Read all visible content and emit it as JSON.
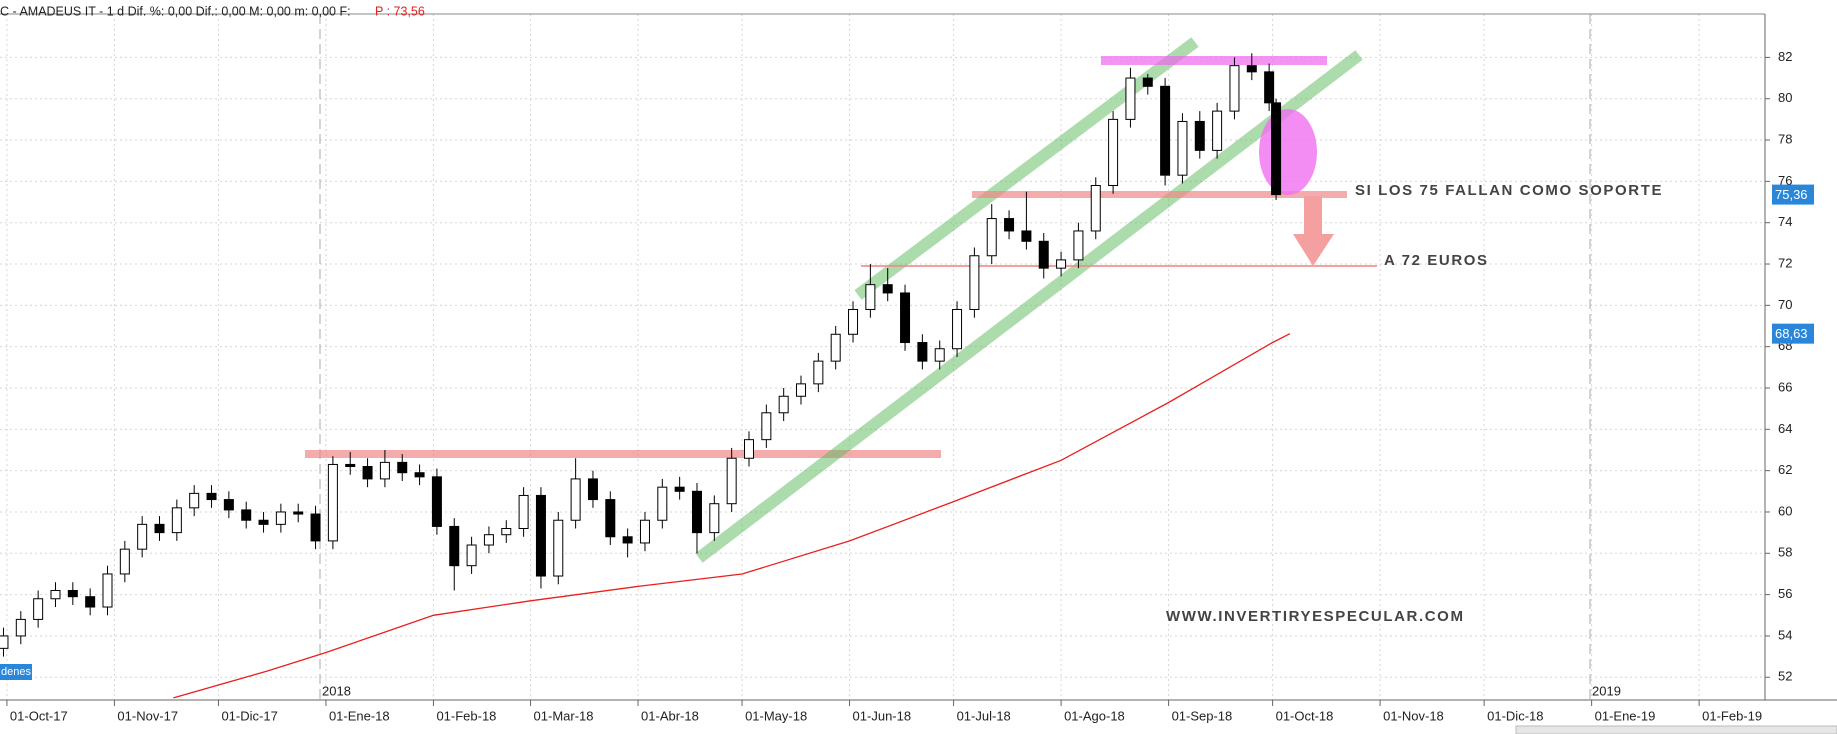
{
  "header": {
    "text": "C - AMADEUS IT  -  1 d  Dif. %: 0,00  Dif.: 0,00  M: 0,00  m: 0,00  F:",
    "price": "P : 73,56"
  },
  "chart_data": {
    "type": "candlestick",
    "xlim": [
      "2017-09-29",
      "2019-02-20"
    ],
    "ylim": [
      50.9,
      84.1
    ],
    "yticks": [
      52,
      54,
      56,
      58,
      60,
      62,
      64,
      66,
      68,
      70,
      72,
      74,
      76,
      78,
      80,
      82
    ],
    "xticks": [
      {
        "value": "2017-10-01",
        "label": "01-Oct-17"
      },
      {
        "value": "2017-11-01",
        "label": "01-Nov-17"
      },
      {
        "value": "2017-12-01",
        "label": "01-Dic-17"
      },
      {
        "value": "2018-01-01",
        "label": "01-Ene-18"
      },
      {
        "value": "2018-02-01",
        "label": "01-Feb-18"
      },
      {
        "value": "2018-03-01",
        "label": "01-Mar-18"
      },
      {
        "value": "2018-04-01",
        "label": "01-Abr-18"
      },
      {
        "value": "2018-05-01",
        "label": "01-May-18"
      },
      {
        "value": "2018-06-01",
        "label": "01-Jun-18"
      },
      {
        "value": "2018-07-01",
        "label": "01-Jul-18"
      },
      {
        "value": "2018-08-01",
        "label": "01-Ago-18"
      },
      {
        "value": "2018-09-01",
        "label": "01-Sep-18"
      },
      {
        "value": "2018-10-01",
        "label": "01-Oct-18"
      },
      {
        "value": "2018-11-01",
        "label": "01-Nov-18"
      },
      {
        "value": "2018-12-01",
        "label": "01-Dic-18"
      },
      {
        "value": "2019-01-01",
        "label": "01-Ene-19"
      },
      {
        "value": "2019-02-01",
        "label": "01-Feb-19"
      }
    ],
    "grid": true,
    "up_color": "#ffffff",
    "down_color": "#000000",
    "candles": {
      "x": [
        "2017-09-30",
        "2017-10-05",
        "2017-10-10",
        "2017-10-15",
        "2017-10-20",
        "2017-10-25",
        "2017-10-30",
        "2017-11-04",
        "2017-11-09",
        "2017-11-14",
        "2017-11-19",
        "2017-11-24",
        "2017-11-29",
        "2017-12-04",
        "2017-12-09",
        "2017-12-14",
        "2017-12-19",
        "2017-12-24",
        "2017-12-29",
        "2018-01-03",
        "2018-01-08",
        "2018-01-13",
        "2018-01-18",
        "2018-01-23",
        "2018-01-28",
        "2018-02-02",
        "2018-02-07",
        "2018-02-12",
        "2018-02-17",
        "2018-02-22",
        "2018-02-27",
        "2018-03-04",
        "2018-03-09",
        "2018-03-14",
        "2018-03-19",
        "2018-03-24",
        "2018-03-29",
        "2018-04-03",
        "2018-04-08",
        "2018-04-13",
        "2018-04-18",
        "2018-04-23",
        "2018-04-28",
        "2018-05-03",
        "2018-05-08",
        "2018-05-13",
        "2018-05-18",
        "2018-05-23",
        "2018-05-28",
        "2018-06-02",
        "2018-06-07",
        "2018-06-12",
        "2018-06-17",
        "2018-06-22",
        "2018-06-27",
        "2018-07-02",
        "2018-07-07",
        "2018-07-12",
        "2018-07-17",
        "2018-07-22",
        "2018-07-27",
        "2018-08-01",
        "2018-08-06",
        "2018-08-11",
        "2018-08-16",
        "2018-08-21",
        "2018-08-26",
        "2018-08-31",
        "2018-09-05",
        "2018-09-10",
        "2018-09-15",
        "2018-09-20",
        "2018-09-25",
        "2018-09-30",
        "2018-10-02"
      ],
      "open": [
        53.4,
        54.0,
        54.8,
        55.8,
        56.2,
        55.9,
        55.4,
        57.0,
        58.2,
        59.4,
        59.0,
        60.2,
        60.9,
        60.6,
        60.1,
        59.6,
        59.4,
        60.0,
        59.9,
        58.6,
        62.3,
        62.2,
        61.6,
        62.4,
        61.9,
        61.7,
        59.3,
        57.4,
        58.4,
        58.9,
        59.2,
        60.8,
        56.9,
        59.6,
        61.6,
        60.6,
        58.8,
        58.5,
        59.6,
        61.2,
        61.0,
        59.0,
        60.4,
        62.6,
        63.5,
        64.8,
        65.6,
        66.2,
        67.3,
        68.6,
        69.8,
        71.0,
        70.6,
        68.2,
        67.3,
        67.9,
        69.8,
        72.4,
        74.2,
        73.6,
        73.1,
        71.8,
        72.2,
        73.6,
        75.8,
        79.0,
        81.0,
        80.6,
        76.3,
        78.9,
        77.5,
        79.4,
        81.6,
        81.3,
        79.8
      ],
      "high": [
        54.4,
        55.2,
        56.2,
        56.6,
        56.6,
        56.3,
        57.4,
        58.6,
        59.8,
        59.8,
        60.6,
        61.3,
        61.3,
        61.0,
        60.5,
        60.0,
        60.4,
        60.4,
        60.3,
        62.7,
        62.9,
        62.6,
        63.0,
        62.8,
        62.3,
        62.1,
        59.7,
        58.8,
        59.3,
        59.6,
        61.2,
        61.2,
        60.0,
        62.6,
        62.0,
        61.0,
        59.2,
        60.0,
        61.6,
        61.7,
        61.4,
        60.8,
        63.1,
        63.9,
        65.2,
        66.0,
        66.6,
        67.7,
        69.0,
        70.2,
        72.0,
        71.8,
        71.0,
        68.6,
        68.3,
        70.2,
        72.8,
        74.9,
        74.6,
        75.5,
        73.5,
        72.6,
        74.0,
        76.2,
        79.4,
        81.5,
        81.2,
        81.0,
        79.3,
        79.4,
        79.8,
        82.0,
        82.2,
        81.7,
        80.0
      ],
      "low": [
        53.0,
        53.6,
        54.4,
        55.4,
        55.5,
        55.0,
        55.0,
        56.6,
        57.8,
        58.6,
        58.6,
        59.8,
        60.2,
        59.7,
        59.2,
        59.0,
        59.0,
        59.5,
        58.2,
        58.2,
        61.8,
        61.2,
        61.2,
        61.5,
        61.3,
        58.9,
        56.2,
        57.0,
        58.0,
        58.5,
        58.8,
        56.3,
        56.5,
        59.2,
        60.2,
        58.4,
        57.8,
        58.1,
        59.2,
        60.6,
        58.0,
        58.6,
        60.0,
        62.2,
        63.1,
        64.4,
        65.2,
        65.8,
        66.9,
        68.2,
        69.4,
        70.2,
        67.8,
        66.9,
        66.9,
        67.5,
        69.4,
        72.0,
        73.2,
        72.7,
        71.3,
        71.4,
        71.8,
        73.2,
        75.4,
        78.6,
        80.2,
        75.8,
        75.9,
        77.1,
        77.1,
        79.0,
        80.9,
        79.4,
        75.1
      ],
      "close": [
        54.0,
        54.8,
        55.8,
        56.2,
        55.9,
        55.4,
        57.0,
        58.2,
        59.4,
        59.0,
        60.2,
        60.9,
        60.6,
        60.1,
        59.6,
        59.4,
        60.0,
        59.9,
        58.6,
        62.3,
        62.2,
        61.6,
        62.4,
        61.9,
        61.7,
        59.3,
        57.4,
        58.4,
        58.9,
        59.2,
        60.8,
        56.9,
        59.6,
        61.6,
        60.6,
        58.8,
        58.5,
        59.6,
        61.2,
        61.0,
        59.0,
        60.4,
        62.6,
        63.5,
        64.8,
        65.6,
        66.2,
        67.3,
        68.6,
        69.8,
        71.0,
        70.6,
        68.2,
        67.3,
        67.9,
        69.8,
        72.4,
        74.2,
        73.6,
        73.1,
        71.8,
        72.2,
        73.6,
        75.8,
        79.0,
        81.0,
        80.6,
        76.3,
        78.9,
        77.5,
        79.4,
        81.6,
        81.3,
        79.8,
        75.36
      ]
    },
    "moving_average": {
      "color": "#e8201e",
      "x": [
        "2017-11-18",
        "2017-12-15",
        "2018-01-01",
        "2018-02-01",
        "2018-03-01",
        "2018-04-01",
        "2018-05-01",
        "2018-06-01",
        "2018-07-01",
        "2018-08-01",
        "2018-09-01",
        "2018-10-01",
        "2018-10-06"
      ],
      "values": [
        51.0,
        52.3,
        53.2,
        55.0,
        55.7,
        56.4,
        57.0,
        58.6,
        60.5,
        62.5,
        65.3,
        68.2,
        68.63
      ]
    },
    "price_tags": [
      {
        "value": 75.36,
        "label": "75,36"
      },
      {
        "value": 68.63,
        "label": "68,63"
      }
    ],
    "year_labels": [
      "2018",
      "2019"
    ],
    "annotations": [
      "SI LOS 75 FALLAN COMO SOPORTE",
      "A 72 EUROS",
      "WWW.INVERTIRYESPECULAR.COM"
    ],
    "tab_label": "denes"
  }
}
